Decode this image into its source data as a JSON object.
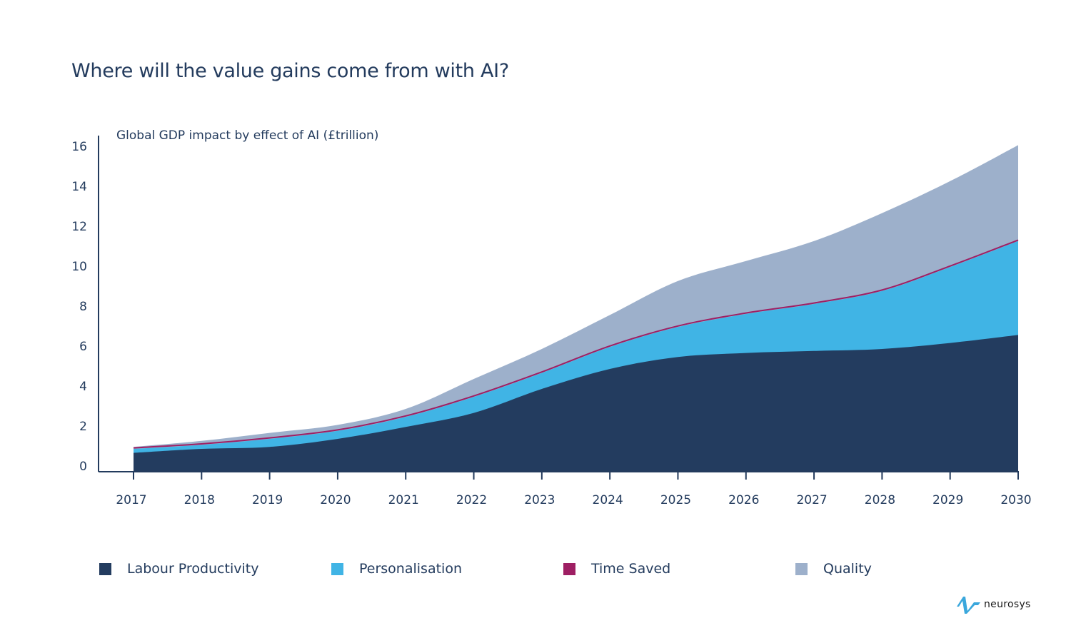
{
  "title": "Where will the value gains come from with AI?",
  "logo_text": "neurosys",
  "chart_data": {
    "type": "area",
    "stacked": true,
    "title": "Where will the value gains come from with AI?",
    "ylabel": "Global GDP impact by effect of AI (£trillion)",
    "xlabel": "",
    "categories": [
      "2017",
      "2018",
      "2019",
      "2020",
      "2021",
      "2022",
      "2023",
      "2024",
      "2025",
      "2026",
      "2027",
      "2028",
      "2029",
      "2030"
    ],
    "yticks": [
      "0",
      "2",
      "4",
      "6",
      "8",
      "10",
      "12",
      "14",
      "16"
    ],
    "ylim": [
      0,
      16
    ],
    "grid": false,
    "legend_position": "bottom",
    "series": [
      {
        "name": "Labour Productivity",
        "color": "#233c5f",
        "values": [
          0.8,
          1.0,
          1.1,
          1.5,
          2.1,
          2.8,
          4.0,
          5.0,
          5.6,
          5.8,
          5.9,
          6.0,
          6.3,
          6.7
        ]
      },
      {
        "name": "Personalisation",
        "color": "#40b4e5",
        "values": [
          0.2,
          0.2,
          0.4,
          0.4,
          0.5,
          0.8,
          0.8,
          1.1,
          1.5,
          1.95,
          2.35,
          2.9,
          3.8,
          4.7
        ]
      },
      {
        "name": "Time Saved",
        "color": "#9e1f63",
        "values": [
          0.05,
          0.05,
          0.05,
          0.05,
          0.05,
          0.05,
          0.05,
          0.05,
          0.05,
          0.05,
          0.05,
          0.05,
          0.05,
          0.05
        ]
      },
      {
        "name": "Quality",
        "color": "#9db0cb",
        "values": [
          0.05,
          0.15,
          0.25,
          0.25,
          0.35,
          0.85,
          1.15,
          1.55,
          2.25,
          2.6,
          3.1,
          3.85,
          4.25,
          4.75
        ]
      }
    ]
  }
}
